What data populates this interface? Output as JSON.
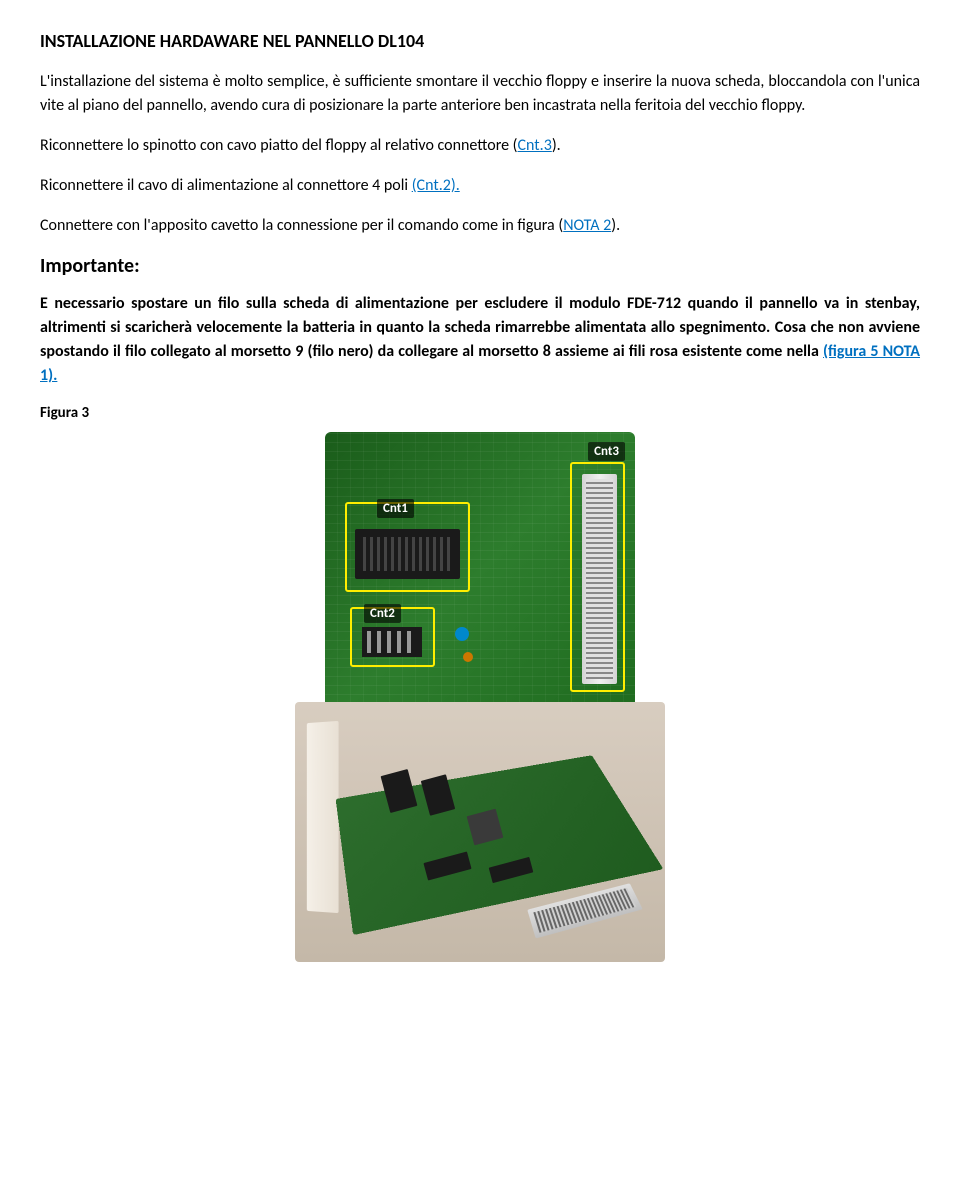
{
  "heading": "INSTALLAZIONE HARDAWARE NEL PANNELLO DL104",
  "para1": "L'installazione del sistema è molto semplice, è sufficiente smontare il vecchio floppy e inserire la nuova scheda, bloccandola con l'unica vite al piano del pannello, avendo cura di posizionare la parte anteriore ben incastrata nella feritoia del vecchio floppy.",
  "para2_pre": "Riconnettere lo spinotto con cavo piatto del floppy al relativo connettore (",
  "para2_link": "Cnt.3",
  "para2_post": ").",
  "para3_pre": "Riconnettere il cavo di alimentazione al connettore 4 poli ",
  "para3_link": "(Cnt.2).",
  "para4_pre": "Connettere con l'apposito cavetto la connessione per il comando come in figura (",
  "para4_link": "NOTA  2",
  "para4_post": ").",
  "important_heading": "Importante:",
  "bold1_pre": "E necessario spostare un filo sulla scheda di alimentazione per escludere il modulo FDE-712 quando il pannello va in stenbay, altrimenti si scaricherà velocemente la batteria in quanto la scheda rimarrebbe alimentata allo spegnimento. Cosa che non avviene spostando il filo collegato al morsetto 9 (filo nero) da collegare al morsetto 8 assieme ai fili rosa esistente come nella ",
  "bold1_link": "(figura 5 NOTA 1).",
  "figure_label": "Figura 3",
  "connectors": {
    "cnt1": "Cnt1",
    "cnt2": "Cnt2",
    "cnt3": "Cnt3"
  },
  "colors": {
    "link": "#0070c0",
    "text": "#000000",
    "pcb_green": "#2d7d2d",
    "highlight_yellow": "#ffee00"
  }
}
